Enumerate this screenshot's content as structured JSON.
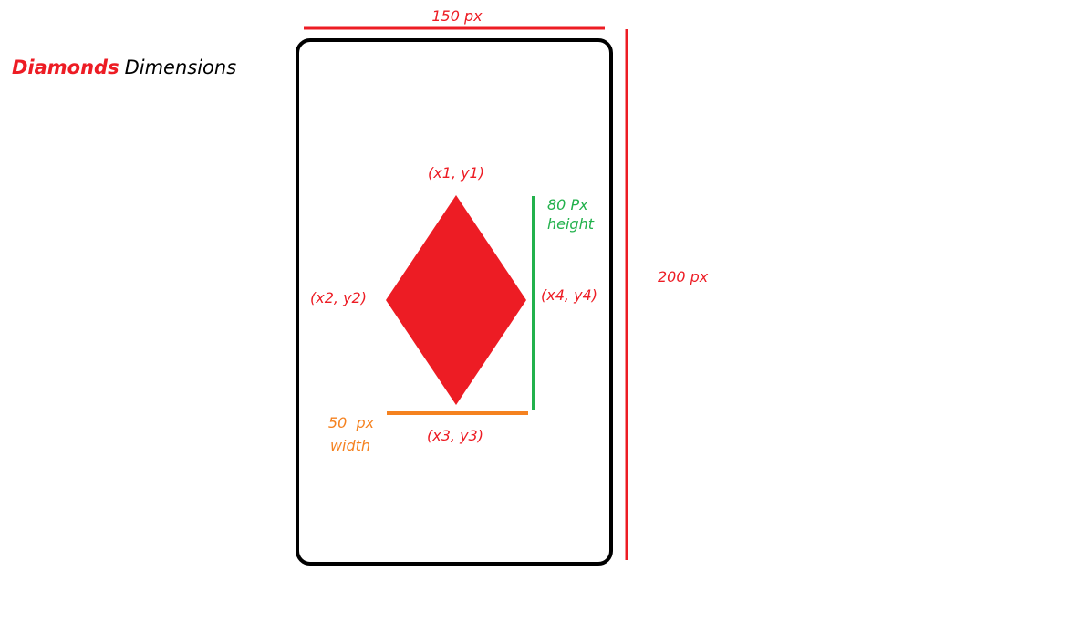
{
  "title": {
    "accent": "Diamonds",
    "rest": "Dimensions"
  },
  "dimensions": {
    "card_width": "150 px",
    "card_height": "200 px",
    "shape_height_line1": "80 Px",
    "shape_height_line2": "height",
    "shape_width_line1": "50  px",
    "shape_width_line2": "width"
  },
  "points": {
    "top": "(x1, y1)",
    "left": "(x2, y2)",
    "bottom": "(x3, y3)",
    "right": "(x4, y4)"
  },
  "colors": {
    "suit_red": "#ed1c24",
    "height_green": "#22b14c",
    "width_orange": "#f58220",
    "card_outline": "#000000"
  }
}
